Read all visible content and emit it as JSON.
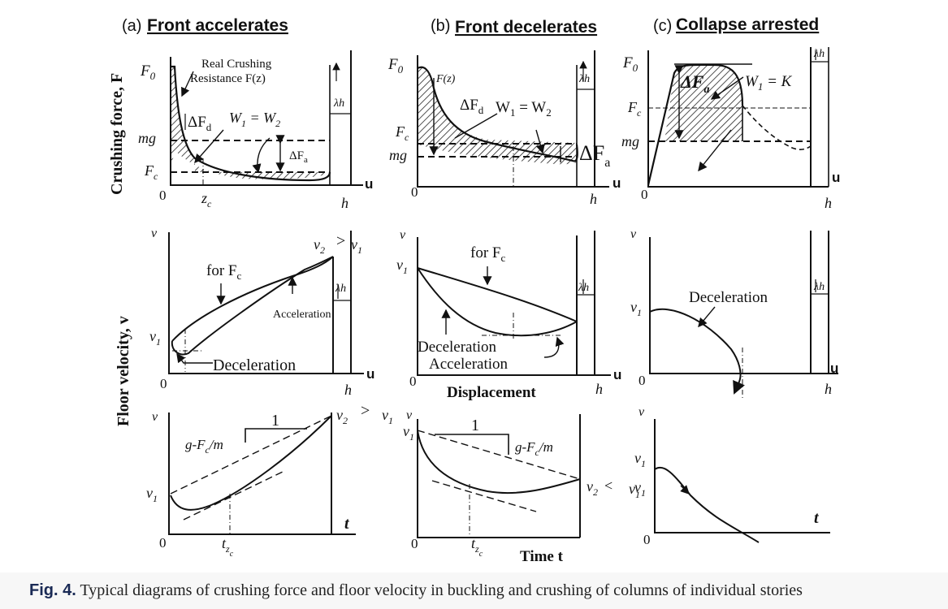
{
  "panel_headers": {
    "a": {
      "prefix": "(a)",
      "title": "Front accelerates"
    },
    "b": {
      "prefix": "(b)",
      "title": "Front decelerates"
    },
    "c": {
      "prefix": "(c)",
      "title": "Collapse arrested"
    }
  },
  "row_labels": {
    "force": "Crushing force, F",
    "velocity": "Floor velocity, v"
  },
  "axis_words": {
    "displacement": "Displacement",
    "time": "Time t"
  },
  "row1": {
    "a": {
      "F0": "F",
      "F0_sub": "0",
      "mg": "mg",
      "Fc": "F",
      "Fc_sub": "c",
      "origin": "0",
      "zc": "z",
      "zc_sub": "c",
      "h": "h",
      "u": "u",
      "lambda_h": "λh",
      "note_line1": "Real Crushing",
      "note_line2": "Resistance F(z)",
      "dFd": "ΔF",
      "dFd_sub": "d",
      "W": "W",
      "W1_sub": "1",
      "eq": " = W",
      "W2_sub": "2",
      "dFa": "ΔF",
      "dFa_sub": "a"
    },
    "b": {
      "F0": "F",
      "F0_sub": "0",
      "Fz": "F(z)",
      "dFd": "ΔF",
      "dFd_sub": "d",
      "Weq_a": "W",
      "Weq_sub1": "1",
      "Weq_b": " = W",
      "Weq_sub2": "2",
      "Fc": "F",
      "Fc_sub": "c",
      "mg": "mg",
      "origin": "0",
      "h": "h",
      "u": "u",
      "lambda_h": "λh",
      "dFa": "ΔF",
      "dFa_sub": "a"
    },
    "c": {
      "F0": "F",
      "F0_sub": "0",
      "Fc": "F",
      "Fc_sub": "c",
      "mg": "mg",
      "origin": "0",
      "h": "h",
      "u": "u",
      "lambda_h": "λh",
      "dFa": "ΔF",
      "dFa_sub": "a",
      "W": "W",
      "W_sub": "1",
      "eq": " = K"
    }
  },
  "row2": {
    "a": {
      "v": "v",
      "v1": "v",
      "v1_sub": "1",
      "v2": "v",
      "v2_sub": "2",
      "gt": ">",
      "v1b": "v",
      "v1b_sub": "1",
      "forFc": "for F",
      "forFc_sub": "c",
      "acceleration": "Acceleration",
      "deceleration": "Deceleration",
      "origin": "0",
      "h": "h",
      "u": "u",
      "lambda_h": "λh"
    },
    "b": {
      "v": "v",
      "v1": "v",
      "v1_sub": "1",
      "forFc": "for F",
      "forFc_sub": "c",
      "deceleration": "Deceleration",
      "acceleration": "Acceleration",
      "origin": "0",
      "h": "h",
      "u": "u",
      "lambda_h": "λh"
    },
    "c": {
      "v": "v",
      "v1": "v",
      "v1_sub": "1",
      "deceleration": "Deceleration",
      "origin": "0",
      "h": "h",
      "u": "u",
      "lambda_h": "λh"
    }
  },
  "row3": {
    "a": {
      "v": "v",
      "v1": "v",
      "v1_sub": "1",
      "v2": "v",
      "v2_sub": "2",
      "gt": ">",
      "v1b": "v",
      "v1b_sub": "1",
      "slope": "g-F",
      "slope_sub": "c",
      "slope_tail": "/m",
      "one": "1",
      "origin": "0",
      "tzc": "t",
      "tzc_sub": "z",
      "tzc_subsub": "c",
      "t": "t"
    },
    "b": {
      "v": "v",
      "v1": "v",
      "v1_sub": "1",
      "one": "1",
      "slope": "g-F",
      "slope_sub": "c",
      "slope_tail": "/m",
      "v2": "v",
      "v2_sub": "2",
      "lt": "<",
      "v1b": "v",
      "v1b_sub": "1",
      "origin": "0",
      "tzc": "t",
      "tzc_sub": "z",
      "tzc_subsub": "c"
    },
    "c": {
      "v": "v",
      "v1": "v",
      "v1_sub": "1",
      "origin": "0",
      "t": "t"
    }
  },
  "caption": {
    "label": "Fig. 4.",
    "text": "Typical diagrams of crushing force and floor velocity in buckling and crushing of columns of individual stories"
  }
}
